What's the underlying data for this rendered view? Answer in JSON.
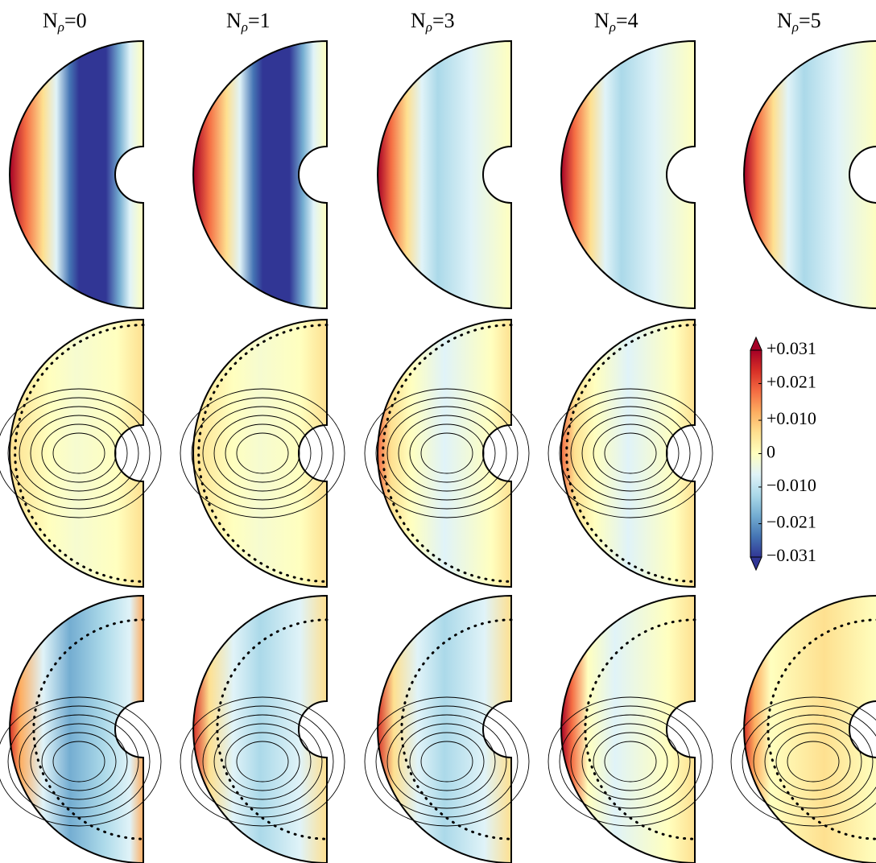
{
  "chart_data": {
    "type": "meridional-panels",
    "column_titles": [
      {
        "main": "N",
        "sub": "ρ",
        "rest": "=0"
      },
      {
        "main": "N",
        "sub": "ρ",
        "rest": "=1"
      },
      {
        "main": "N",
        "sub": "ρ",
        "rest": "=3"
      },
      {
        "main": "N",
        "sub": "ρ",
        "rest": "=4"
      },
      {
        "main": "N",
        "sub": "ρ",
        "rest": "=5"
      }
    ],
    "colorbar": {
      "lim": [
        -0.031,
        0.031
      ],
      "ticks": [
        {
          "value": 0.031,
          "label": "+0.031"
        },
        {
          "value": 0.021,
          "label": "+0.021"
        },
        {
          "value": 0.01,
          "label": "+0.010"
        },
        0,
        {
          "value": -0.01,
          "label": "−0.010"
        },
        {
          "value": -0.021,
          "label": "−0.021"
        },
        {
          "value": -0.031,
          "label": "−0.031"
        }
      ],
      "colors": [
        "#313695",
        "#4575b4",
        "#74add1",
        "#abd9e9",
        "#e0f3f8",
        "#ffffbf",
        "#fee090",
        "#fdae61",
        "#f46d43",
        "#d73027",
        "#a50026"
      ]
    }
  }
}
